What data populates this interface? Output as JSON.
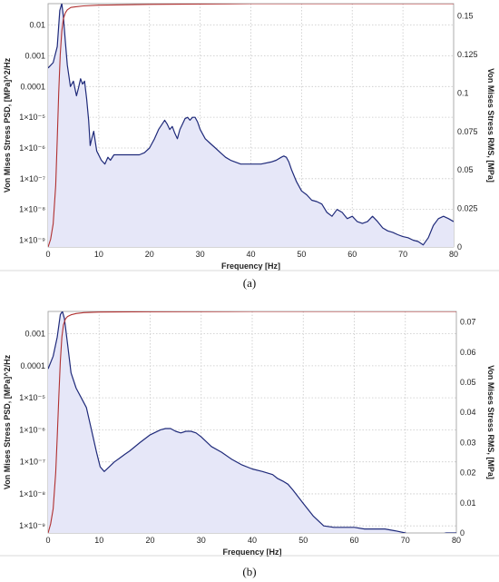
{
  "chart_data": [
    {
      "type": "line",
      "panel_label": "(a)",
      "xlabel": "Frequency [Hz]",
      "ylabel_left": "Von Mises Stress PSD, [MPa]^2/Hz",
      "ylabel_right": "Von Mises Stress RMS, [MPa]",
      "xlim": [
        0,
        80
      ],
      "x_ticks": [
        "0",
        "10",
        "20",
        "30",
        "40",
        "50",
        "60",
        "70",
        "80"
      ],
      "y_left_scale": "log",
      "y_left_lim": [
        6e-10,
        0.05
      ],
      "y_left_ticks": [
        {
          "value": 1e-09,
          "label": "1×10⁻⁹"
        },
        {
          "value": 1e-08,
          "label": "1×10⁻⁸"
        },
        {
          "value": 1e-07,
          "label": "1×10⁻⁷"
        },
        {
          "value": 1e-06,
          "label": "1×10⁻⁶"
        },
        {
          "value": 1e-05,
          "label": "1×10⁻⁵"
        },
        {
          "value": 0.0001,
          "label": "0.0001"
        },
        {
          "value": 0.001,
          "label": "0.001"
        },
        {
          "value": 0.01,
          "label": "0.01"
        }
      ],
      "y_right_lim": [
        0,
        0.158
      ],
      "y_right_ticks": [
        "0",
        "0.025",
        "0.05",
        "0.075",
        "0.1",
        "0.125",
        "0.15"
      ],
      "grid": true,
      "series": [
        {
          "color": "#1f2a7a",
          "fill": "#e6e7f8",
          "x": [
            0,
            1,
            1.8,
            2.3,
            2.7,
            3.0,
            3.4,
            3.8,
            4.4,
            5.0,
            5.6,
            6.0,
            6.4,
            6.8,
            7.2,
            7.6,
            8.0,
            8.3,
            8.6,
            9.0,
            9.6,
            10.5,
            11.2,
            11.8,
            12.3,
            13,
            14,
            16,
            18,
            19,
            20,
            21,
            21.8,
            22.5,
            23,
            23.5,
            24,
            24.5,
            25,
            25.5,
            26,
            26.5,
            27,
            27.5,
            28,
            28.5,
            29,
            29.5,
            30,
            31,
            32,
            33,
            34,
            35,
            36,
            38,
            40,
            42,
            44,
            45,
            46,
            46.5,
            47,
            47.5,
            48,
            49,
            50,
            51,
            52,
            53,
            54,
            55,
            56,
            57,
            58,
            59,
            60,
            61,
            62,
            63,
            64,
            65,
            66,
            67,
            68,
            69,
            70,
            71,
            72,
            73,
            74,
            75,
            76,
            77,
            78,
            79,
            80
          ],
          "y": [
            0.0004,
            0.0006,
            0.002,
            0.03,
            0.05,
            0.02,
            0.003,
            0.0005,
            0.0001,
            0.00015,
            5e-05,
            9e-05,
            0.00018,
            0.00012,
            0.00015,
            4e-05,
            8e-06,
            1.2e-06,
            2e-06,
            3.5e-06,
            8e-07,
            4e-07,
            3e-07,
            5e-07,
            4e-07,
            6e-07,
            6e-07,
            6e-07,
            6e-07,
            7e-07,
            1e-06,
            2e-06,
            4e-06,
            6e-06,
            8e-06,
            6e-06,
            4e-06,
            5e-06,
            3e-06,
            2e-06,
            4e-06,
            6e-06,
            9e-06,
            1e-05,
            8e-06,
            1e-05,
            1e-05,
            7e-06,
            4e-06,
            2e-06,
            1.4e-06,
            1e-06,
            7e-07,
            5e-07,
            4e-07,
            3e-07,
            3e-07,
            3e-07,
            3.5e-07,
            4e-07,
            5e-07,
            5.5e-07,
            5e-07,
            3.5e-07,
            2e-07,
            8e-08,
            4e-08,
            3e-08,
            2e-08,
            1.8e-08,
            1.5e-08,
            8e-09,
            6e-09,
            1e-08,
            8e-09,
            5e-09,
            6e-09,
            4e-09,
            3.5e-09,
            4e-09,
            6e-09,
            4e-09,
            2.5e-09,
            2e-09,
            1.8e-09,
            1.5e-09,
            1.3e-09,
            1.2e-09,
            1e-09,
            9e-10,
            7e-10,
            1.2e-09,
            3e-09,
            5e-09,
            6e-09,
            5e-09,
            4e-09
          ]
        },
        {
          "color": "#b03030",
          "axis": "right",
          "x": [
            0,
            0.5,
            1,
            1.5,
            1.8,
            2.1,
            2.4,
            2.7,
            3.0,
            3.4,
            3.8,
            4.5,
            5.5,
            7,
            10,
            20,
            40,
            60,
            80
          ],
          "y": [
            0,
            0.005,
            0.015,
            0.04,
            0.07,
            0.1,
            0.125,
            0.14,
            0.148,
            0.152,
            0.154,
            0.1555,
            0.156,
            0.1565,
            0.157,
            0.1575,
            0.158,
            0.158,
            0.158
          ]
        }
      ]
    },
    {
      "type": "line",
      "panel_label": "(b)",
      "xlabel": "Frequency [Hz]",
      "ylabel_left": "Von Mises Stress PSD, [MPa]^2/Hz",
      "ylabel_right": "Von Mises Stress RMS, [MPa]",
      "xlim": [
        0,
        80
      ],
      "x_ticks": [
        "0",
        "10",
        "20",
        "30",
        "40",
        "50",
        "60",
        "70",
        "80"
      ],
      "y_left_scale": "log",
      "y_left_lim": [
        6e-10,
        0.005
      ],
      "y_left_ticks": [
        {
          "value": 1e-09,
          "label": "1×10⁻⁹"
        },
        {
          "value": 1e-08,
          "label": "1×10⁻⁸"
        },
        {
          "value": 1e-07,
          "label": "1×10⁻⁷"
        },
        {
          "value": 1e-06,
          "label": "1×10⁻⁶"
        },
        {
          "value": 1e-05,
          "label": "1×10⁻⁵"
        },
        {
          "value": 0.0001,
          "label": "0.0001"
        },
        {
          "value": 0.001,
          "label": "0.001"
        }
      ],
      "y_right_lim": [
        0,
        0.0735
      ],
      "y_right_ticks": [
        "0",
        "0.01",
        "0.02",
        "0.03",
        "0.04",
        "0.05",
        "0.06",
        "0.07"
      ],
      "grid": true,
      "series": [
        {
          "color": "#1f2a7a",
          "fill": "#e6e7f8",
          "x": [
            0,
            1,
            1.8,
            2.4,
            2.8,
            3.2,
            3.8,
            4.5,
            5.5,
            6.5,
            7.5,
            8.5,
            9.5,
            10.2,
            11,
            12,
            13,
            14,
            15,
            16,
            18,
            20,
            22,
            23,
            24,
            25,
            26,
            27,
            28,
            29,
            30,
            32,
            34,
            36,
            38,
            40,
            42,
            44,
            45,
            46,
            47,
            48,
            50,
            52,
            54,
            56,
            58,
            60,
            62,
            64,
            66,
            68,
            70,
            71,
            72,
            73,
            74,
            76,
            78,
            80
          ],
          "y": [
            8e-05,
            0.0002,
            0.0008,
            0.004,
            0.005,
            0.003,
            0.0005,
            6e-05,
            2e-05,
            1e-05,
            5e-06,
            1e-06,
            2e-07,
            7e-08,
            5e-08,
            7e-08,
            1e-07,
            1.3e-07,
            1.7e-07,
            2.2e-07,
            4e-07,
            7e-07,
            1e-06,
            1.1e-06,
            1.1e-06,
            9e-07,
            8e-07,
            9e-07,
            9e-07,
            8e-07,
            6e-07,
            3e-07,
            2e-07,
            1.2e-07,
            8e-08,
            6e-08,
            5e-08,
            4e-08,
            3e-08,
            2.5e-08,
            2e-08,
            1.3e-08,
            5e-09,
            2e-09,
            1e-09,
            9e-10,
            9e-10,
            9e-10,
            8e-10,
            8e-10,
            8e-10,
            7e-10,
            6e-10,
            5e-10,
            5e-10,
            5e-10,
            5e-10,
            5e-10,
            6e-10,
            6e-10
          ]
        },
        {
          "color": "#b03030",
          "axis": "right",
          "x": [
            0,
            0.5,
            1,
            1.5,
            1.8,
            2.1,
            2.4,
            2.7,
            3.0,
            3.4,
            3.8,
            4.5,
            5.5,
            7,
            10,
            20,
            40,
            60,
            80
          ],
          "y": [
            0,
            0.003,
            0.008,
            0.02,
            0.032,
            0.045,
            0.057,
            0.065,
            0.069,
            0.071,
            0.0718,
            0.0724,
            0.0728,
            0.0731,
            0.0733,
            0.0734,
            0.0735,
            0.0735,
            0.0735
          ]
        }
      ]
    }
  ]
}
